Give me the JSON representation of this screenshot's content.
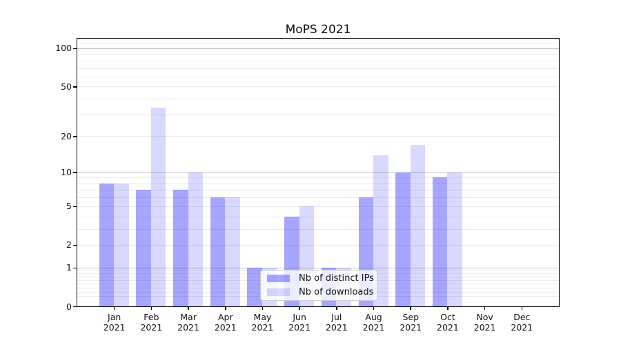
{
  "chart_data": {
    "type": "bar",
    "title": "MoPS 2021",
    "categories": [
      "Jan",
      "Feb",
      "Mar",
      "Apr",
      "May",
      "Jun",
      "Jul",
      "Aug",
      "Sep",
      "Oct",
      "Nov",
      "Dec"
    ],
    "category_year": "2021",
    "series": [
      {
        "name": "Nb of distinct IPs",
        "color": "#0000ff",
        "alpha": 0.35,
        "values": [
          8,
          7,
          7,
          6,
          1,
          4,
          1,
          6,
          10,
          9,
          0,
          0
        ]
      },
      {
        "name": "Nb of downloads",
        "color": "#0000ff",
        "alpha": 0.15,
        "values": [
          8,
          34,
          10,
          6,
          1,
          5,
          1,
          14,
          17,
          10,
          0,
          0
        ]
      }
    ],
    "yscale": "log1p",
    "ylim": [
      0,
      119
    ],
    "ytick_values": [
      100,
      50,
      20,
      10,
      5,
      2,
      1,
      0
    ],
    "grid": {
      "major_values": [
        1,
        10,
        100
      ],
      "minor_values": [
        0.2,
        0.3,
        0.4,
        0.5,
        0.6,
        0.7,
        0.8,
        0.9,
        2,
        3,
        4,
        5,
        6,
        7,
        8,
        9,
        20,
        30,
        40,
        50,
        60,
        70,
        80,
        90,
        110
      ],
      "major_color": "#c3c3c3",
      "minor_color": "#ebebeb"
    },
    "legend_position": "lower center",
    "xlabel": "",
    "ylabel": ""
  },
  "colors": {
    "background": "#ffffff",
    "spine": "#000000",
    "text": "#111111",
    "bar_distinct_ips_on_white": "#a6a6ff",
    "bar_downloads_on_white": "#d9d9ff"
  }
}
